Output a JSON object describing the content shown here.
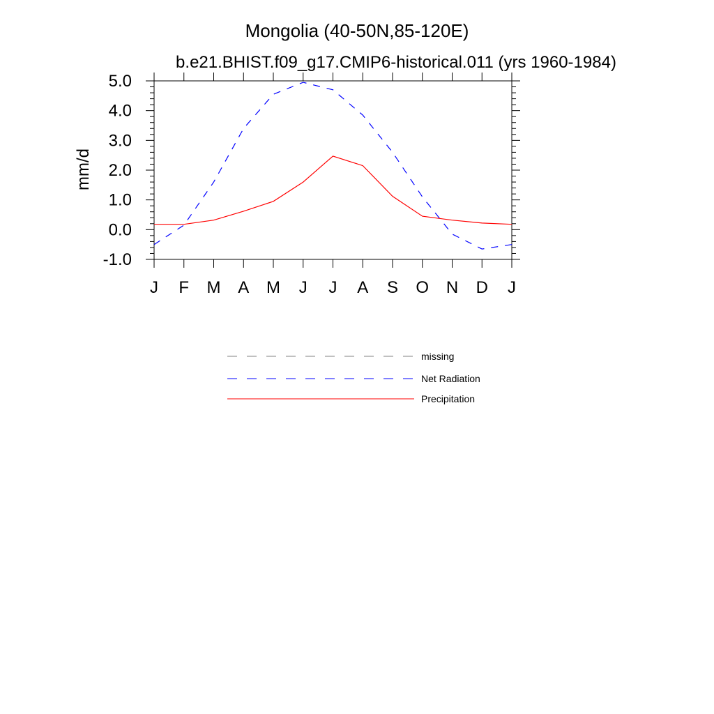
{
  "chart_data": {
    "type": "line",
    "title": "Mongolia (40-50N,85-120E)",
    "subtitle": "b.e21.BHIST.f09_g17.CMIP6-historical.011 (yrs 1960-1984)",
    "ylabel": "mm/d",
    "xlabel": "",
    "ylim": [
      -1.0,
      5.0
    ],
    "yticks": [
      "-1.0",
      "0.0",
      "1.0",
      "2.0",
      "3.0",
      "4.0",
      "5.0"
    ],
    "categories": [
      "J",
      "F",
      "M",
      "A",
      "M",
      "J",
      "J",
      "A",
      "S",
      "O",
      "N",
      "D",
      "J"
    ],
    "grid": false,
    "legend_position": "bottom",
    "series": [
      {
        "name": "Net Radiation",
        "color": "#0000ff",
        "dash": "dashed",
        "values": [
          -0.5,
          0.15,
          1.6,
          3.4,
          4.55,
          4.95,
          4.7,
          3.85,
          2.6,
          1.1,
          -0.15,
          -0.65,
          -0.5
        ]
      },
      {
        "name": "Precipitation",
        "color": "#ff0000",
        "dash": "solid",
        "values": [
          0.18,
          0.18,
          0.32,
          0.62,
          0.95,
          1.6,
          2.47,
          2.15,
          1.12,
          0.45,
          0.32,
          0.22,
          0.18
        ]
      }
    ],
    "legend": [
      {
        "label": "missing",
        "color": "#808080",
        "dash": "dashed"
      },
      {
        "label": "Net Radiation",
        "color": "#0000ff",
        "dash": "dashed"
      },
      {
        "label": "Precipitation",
        "color": "#ff0000",
        "dash": "solid"
      }
    ]
  }
}
